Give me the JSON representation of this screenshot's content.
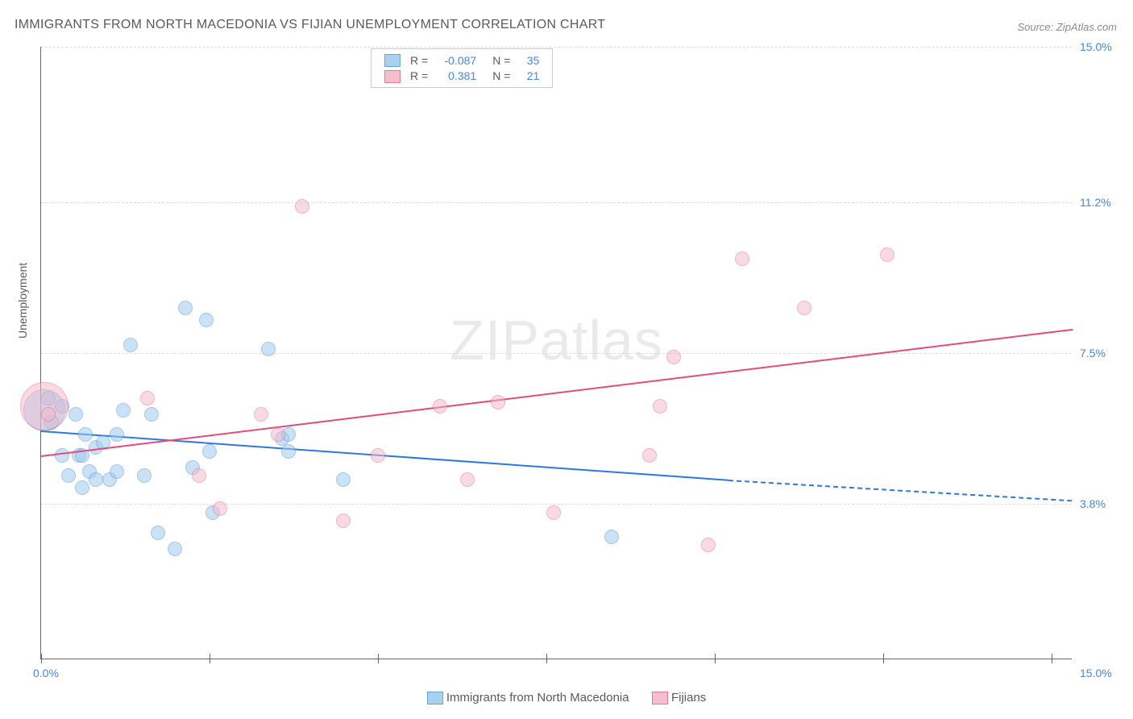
{
  "title": "IMMIGRANTS FROM NORTH MACEDONIA VS FIJIAN UNEMPLOYMENT CORRELATION CHART",
  "source": "Source: ZipAtlas.com",
  "watermark_a": "ZIP",
  "watermark_b": "atlas",
  "chart": {
    "type": "scatter-with-trendlines",
    "xlim": [
      0,
      15
    ],
    "ylim": [
      0,
      15
    ],
    "y_ticks": [
      3.8,
      7.5,
      11.2,
      15.0
    ],
    "x_ticks_pos": [
      0,
      2.45,
      4.9,
      7.35,
      9.8,
      12.25,
      14.7
    ],
    "x_tick_labels": {
      "left": "0.0%",
      "right": "15.0%"
    },
    "y_tick_labels": [
      "3.8%",
      "7.5%",
      "11.2%",
      "15.0%"
    ],
    "ylabel": "Unemployment",
    "background_color": "#ffffff",
    "grid_color": "#dddddd",
    "axis_color": "#666666",
    "marker_radius": 9,
    "marker_stroke_width": 1.5,
    "series": [
      {
        "name": "Immigrants from North Macedonia",
        "key": "macedonia",
        "fill": "#9ecbf0",
        "stroke": "#5b9bd5",
        "fill_opacity": 0.55,
        "R": "-0.087",
        "N": "35",
        "trend": {
          "x1": 0,
          "y1": 5.6,
          "x2": 10.0,
          "y2": 4.4,
          "x2_ext": 15.0,
          "y2_ext": 3.9,
          "color": "#2b78e4",
          "width": 2,
          "dash_ext": true
        },
        "points": [
          [
            0.05,
            6.1,
            26
          ],
          [
            0.1,
            6.4
          ],
          [
            0.15,
            5.8
          ],
          [
            0.3,
            6.2
          ],
          [
            0.3,
            5.0
          ],
          [
            0.4,
            4.5
          ],
          [
            0.5,
            6.0
          ],
          [
            0.55,
            5.0
          ],
          [
            0.6,
            5.0
          ],
          [
            0.6,
            4.2
          ],
          [
            0.65,
            5.5
          ],
          [
            0.7,
            4.6
          ],
          [
            0.8,
            5.2
          ],
          [
            0.8,
            4.4
          ],
          [
            0.9,
            5.3
          ],
          [
            1.0,
            4.4
          ],
          [
            1.1,
            5.5
          ],
          [
            1.1,
            4.6
          ],
          [
            1.2,
            6.1
          ],
          [
            1.3,
            7.7
          ],
          [
            1.5,
            4.5
          ],
          [
            1.6,
            6.0
          ],
          [
            1.7,
            3.1
          ],
          [
            1.95,
            2.7
          ],
          [
            2.1,
            8.6
          ],
          [
            2.2,
            4.7
          ],
          [
            2.4,
            8.3
          ],
          [
            2.45,
            5.1
          ],
          [
            2.5,
            3.6
          ],
          [
            3.3,
            7.6
          ],
          [
            3.5,
            5.4
          ],
          [
            3.6,
            5.1
          ],
          [
            3.6,
            5.5
          ],
          [
            4.4,
            4.4
          ],
          [
            8.3,
            3.0
          ]
        ]
      },
      {
        "name": "Fijians",
        "key": "fijians",
        "fill": "#f5b7c7",
        "stroke": "#e66a8f",
        "fill_opacity": 0.5,
        "R": "0.381",
        "N": "21",
        "trend": {
          "x1": 0,
          "y1": 5.0,
          "x2": 15.0,
          "y2": 8.1,
          "color": "#e84a7a",
          "width": 2
        },
        "points": [
          [
            0.05,
            6.2,
            30
          ],
          [
            0.1,
            6.0
          ],
          [
            1.55,
            6.4
          ],
          [
            2.3,
            4.5
          ],
          [
            2.6,
            3.7
          ],
          [
            3.2,
            6.0
          ],
          [
            3.45,
            5.5
          ],
          [
            3.8,
            11.1
          ],
          [
            4.4,
            3.4
          ],
          [
            4.9,
            5.0
          ],
          [
            5.8,
            6.2
          ],
          [
            6.2,
            4.4
          ],
          [
            6.65,
            6.3
          ],
          [
            7.45,
            3.6
          ],
          [
            8.85,
            5.0
          ],
          [
            9.0,
            6.2
          ],
          [
            9.2,
            7.4
          ],
          [
            9.7,
            2.8
          ],
          [
            10.2,
            9.8
          ],
          [
            11.1,
            8.6
          ],
          [
            12.3,
            9.9
          ]
        ]
      }
    ]
  },
  "legend_top": {
    "R_label": "R =",
    "N_label": "N =",
    "text_color": "#5a5a5a",
    "value_color": "#4285f4"
  },
  "legend_bottom": {
    "items": [
      "Immigrants from North Macedonia",
      "Fijians"
    ]
  }
}
